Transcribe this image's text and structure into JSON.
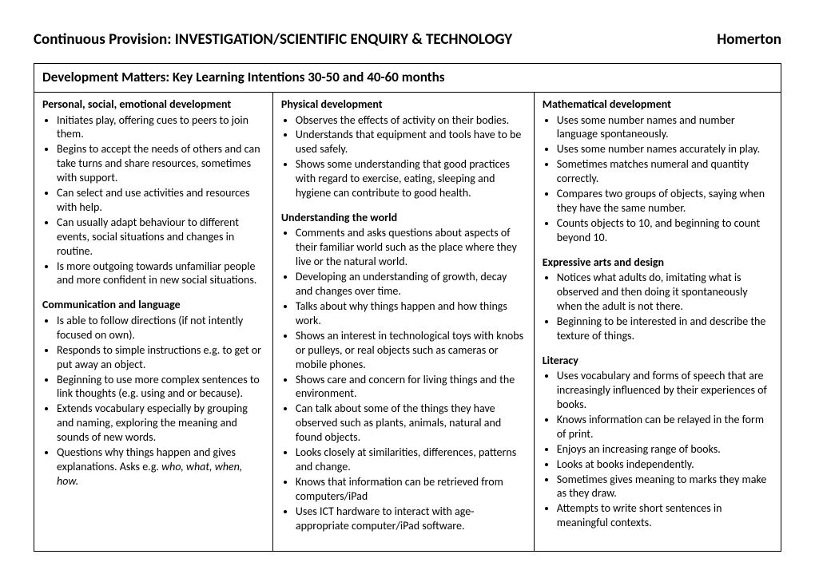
{
  "header": {
    "left": "Continuous Provision: INVESTIGATION/SCIENTIFIC ENQUIRY & TECHNOLOGY",
    "right": "Homerton"
  },
  "section_title": "Development Matters: Key Learning Intentions 30-50 and 40-60 months",
  "col1": {
    "h1": "Personal, social, emotional development",
    "b1": [
      "Initiates play, offering cues to peers to join them.",
      "Begins to accept the needs of others and can take turns and share resources, sometimes with support.",
      "Can select and use activities and resources with help.",
      "Can usually adapt behaviour to different events, social situations and changes in routine.",
      "Is more outgoing towards unfamiliar people and more confident in new social situations."
    ],
    "h2": "Communication and language",
    "b2": [
      "Is able to follow directions (if not intently focused on own).",
      "Responds to simple instructions e.g. to get or put away an object.",
      "Beginning to use more complex sentences to link thoughts (e.g. using and or because).",
      "Extends vocabulary especially by grouping and naming, exploring the meaning and sounds of new words."
    ],
    "b2_last_pre": "Questions why things happen and gives explanations. Asks e.g. ",
    "b2_last_italic": "who, what, when, how."
  },
  "col2": {
    "h1": "Physical development",
    "b1": [
      "Observes the effects of activity on their bodies.",
      "Understands that equipment and tools have to be used safely.",
      "Shows some understanding that good practices with regard to exercise, eating, sleeping and hygiene can contribute to good health."
    ],
    "h2": "Understanding the world",
    "b2": [
      "Comments and asks questions about aspects of their familiar world such as the place where they live or the natural world.",
      "Developing an understanding of growth, decay and changes over time.",
      "Talks about why things happen and how things work.",
      "Shows an interest in technological toys with knobs or pulleys, or real objects such as cameras or mobile phones.",
      "Shows care and concern for living things and the environment.",
      "Can talk about some of the things they have observed such as plants, animals, natural and found objects.",
      "Looks closely at similarities, differences, patterns and change.",
      "Knows that information can be retrieved from computers/iPad",
      "Uses ICT hardware to interact with age-appropriate computer/iPad software."
    ]
  },
  "col3": {
    "h1": "Mathematical development",
    "b1": [
      "Uses some number names and number language spontaneously.",
      "Uses some number names accurately in play.",
      "Sometimes matches numeral and quantity correctly.",
      "Compares two groups of objects, saying when they have the same number.",
      "Counts objects to 10, and beginning to count beyond 10."
    ],
    "h2": "Expressive arts and design",
    "b2": [
      "Notices what adults do, imitating what is observed and then doing it spontaneously when the adult is not there.",
      "Beginning to be interested in and describe the texture of things."
    ],
    "h3": "Literacy",
    "b3": [
      "Uses vocabulary and forms of speech that are increasingly influenced by their experiences of books.",
      "Knows information can be relayed in the form of print.",
      "Enjoys an increasing range of books.",
      "Looks at books independently.",
      "Sometimes gives meaning to marks they make as they draw.",
      "Attempts to write short sentences in meaningful contexts."
    ]
  }
}
